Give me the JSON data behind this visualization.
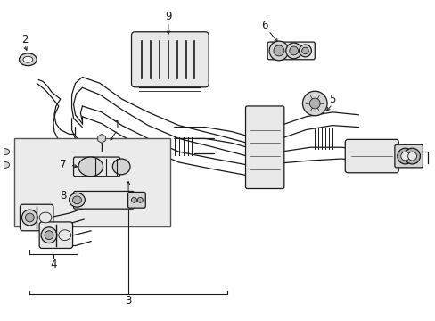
{
  "background_color": "#ffffff",
  "line_color": "#1a1a1a",
  "fig_width": 4.89,
  "fig_height": 3.6,
  "dpi": 100,
  "label_fontsize": 8.5,
  "lw_main": 0.9,
  "lw_thin": 0.6,
  "gray_fill": "#d4d4d4",
  "gray_dark": "#b0b0b0",
  "gray_light": "#e8e8e8",
  "inset_fill": "#ebebeb",
  "white": "#ffffff"
}
